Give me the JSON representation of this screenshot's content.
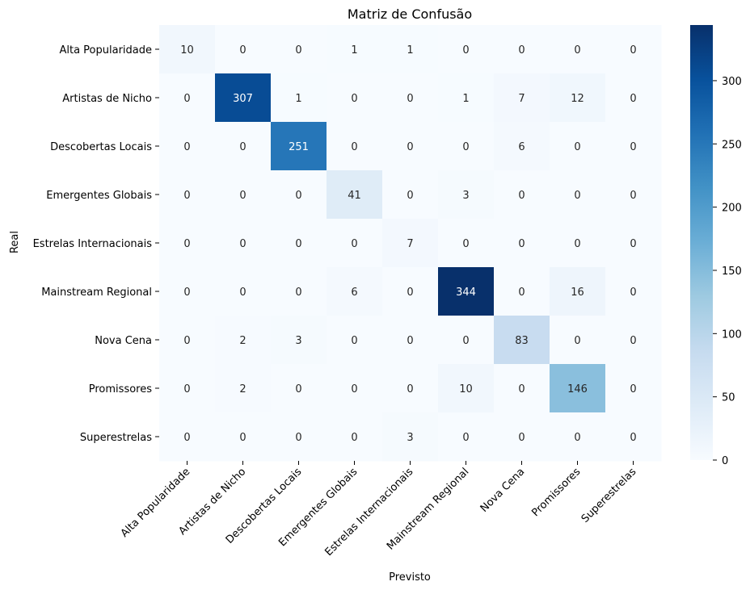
{
  "chart_data": {
    "type": "heatmap",
    "title": "Matriz de Confusão",
    "xlabel": "Previsto",
    "ylabel": "Real",
    "x_categories": [
      "Alta Popularidade",
      "Artistas de Nicho",
      "Descobertas Locais",
      "Emergentes Globais",
      "Estrelas Internacionais",
      "Mainstream Regional",
      "Nova Cena",
      "Promissores",
      "Superestrelas"
    ],
    "y_categories": [
      "Alta Popularidade",
      "Artistas de Nicho",
      "Descobertas Locais",
      "Emergentes Globais",
      "Estrelas Internacionais",
      "Mainstream Regional",
      "Nova Cena",
      "Promissores",
      "Superestrelas"
    ],
    "values": [
      [
        10,
        0,
        0,
        1,
        1,
        0,
        0,
        0,
        0
      ],
      [
        0,
        307,
        1,
        0,
        0,
        1,
        7,
        12,
        0
      ],
      [
        0,
        0,
        251,
        0,
        0,
        0,
        6,
        0,
        0
      ],
      [
        0,
        0,
        0,
        41,
        0,
        3,
        0,
        0,
        0
      ],
      [
        0,
        0,
        0,
        0,
        7,
        0,
        0,
        0,
        0
      ],
      [
        0,
        0,
        0,
        6,
        0,
        344,
        0,
        16,
        0
      ],
      [
        0,
        2,
        3,
        0,
        0,
        0,
        83,
        0,
        0
      ],
      [
        0,
        2,
        0,
        0,
        0,
        10,
        0,
        146,
        0
      ],
      [
        0,
        0,
        0,
        0,
        3,
        0,
        0,
        0,
        0
      ]
    ],
    "colormap": "Blues",
    "colorbar": {
      "min": 0,
      "max": 344,
      "ticks": [
        0,
        50,
        100,
        150,
        200,
        250,
        300
      ]
    },
    "grid": false,
    "legend": "colorbar-right"
  }
}
